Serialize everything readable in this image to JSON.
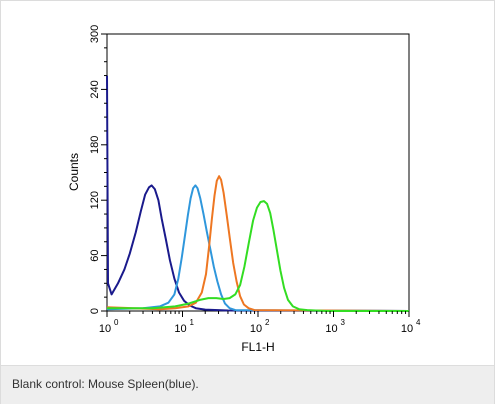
{
  "caption": "Blank control: Mouse Spleen(blue).",
  "chart_data": {
    "type": "line",
    "xlabel": "FL1-H",
    "ylabel": "Counts",
    "x_scale": "log",
    "xlim": [
      1,
      10000
    ],
    "ylim": [
      0,
      300
    ],
    "x_ticks": [
      {
        "value": 1,
        "base": "10",
        "exp": "0"
      },
      {
        "value": 10,
        "base": "10",
        "exp": "1"
      },
      {
        "value": 100,
        "base": "10",
        "exp": "2"
      },
      {
        "value": 1000,
        "base": "10",
        "exp": "3"
      },
      {
        "value": 10000,
        "base": "10",
        "exp": "4"
      }
    ],
    "y_ticks": [
      "0",
      "60",
      "120",
      "180",
      "240",
      "300"
    ],
    "grid": false,
    "series": [
      {
        "color": "#1a1a8c",
        "points": [
          [
            1.0,
            255
          ],
          [
            1.03,
            30
          ],
          [
            1.15,
            18
          ],
          [
            1.4,
            30
          ],
          [
            1.7,
            45
          ],
          [
            2.0,
            62
          ],
          [
            2.4,
            85
          ],
          [
            2.8,
            108
          ],
          [
            3.2,
            126
          ],
          [
            3.6,
            134
          ],
          [
            3.9,
            136
          ],
          [
            4.3,
            132
          ],
          [
            4.8,
            120
          ],
          [
            5.3,
            100
          ],
          [
            6.0,
            78
          ],
          [
            6.8,
            55
          ],
          [
            7.8,
            35
          ],
          [
            9.0,
            20
          ],
          [
            10.5,
            11
          ],
          [
            12.5,
            6
          ],
          [
            15,
            3
          ],
          [
            20,
            1.5
          ],
          [
            40,
            0.5
          ],
          [
            10000,
            0
          ]
        ]
      },
      {
        "color": "#2f97dc",
        "points": [
          [
            1.0,
            2
          ],
          [
            3,
            3
          ],
          [
            5,
            5
          ],
          [
            6.5,
            9
          ],
          [
            7.8,
            18
          ],
          [
            8.8,
            35
          ],
          [
            9.8,
            58
          ],
          [
            10.8,
            82
          ],
          [
            11.8,
            104
          ],
          [
            12.8,
            122
          ],
          [
            13.8,
            133
          ],
          [
            14.8,
            136
          ],
          [
            15.8,
            133
          ],
          [
            17.2,
            122
          ],
          [
            19,
            105
          ],
          [
            21,
            86
          ],
          [
            23.5,
            66
          ],
          [
            26,
            48
          ],
          [
            29,
            32
          ],
          [
            32.5,
            18
          ],
          [
            36.5,
            8
          ],
          [
            42,
            3
          ],
          [
            50,
            1
          ],
          [
            10000,
            0
          ]
        ]
      },
      {
        "color": "#ee7722",
        "points": [
          [
            1.0,
            4
          ],
          [
            5,
            2
          ],
          [
            8,
            3
          ],
          [
            12,
            5
          ],
          [
            15,
            9
          ],
          [
            18,
            20
          ],
          [
            20.5,
            40
          ],
          [
            22.5,
            70
          ],
          [
            24.5,
            100
          ],
          [
            26.5,
            125
          ],
          [
            28.5,
            141
          ],
          [
            30.5,
            146
          ],
          [
            32.5,
            142
          ],
          [
            35,
            128
          ],
          [
            38.5,
            104
          ],
          [
            42.5,
            78
          ],
          [
            47,
            52
          ],
          [
            52,
            32
          ],
          [
            58,
            16
          ],
          [
            65,
            7
          ],
          [
            75,
            3
          ],
          [
            90,
            1
          ],
          [
            10000,
            0
          ]
        ]
      },
      {
        "color": "#33dd22",
        "points": [
          [
            1.0,
            3
          ],
          [
            4,
            3
          ],
          [
            8,
            5
          ],
          [
            12,
            8
          ],
          [
            17,
            12
          ],
          [
            22,
            14
          ],
          [
            28,
            14
          ],
          [
            35,
            13
          ],
          [
            42,
            14
          ],
          [
            50,
            18
          ],
          [
            58,
            28
          ],
          [
            66,
            48
          ],
          [
            76,
            75
          ],
          [
            86,
            98
          ],
          [
            97,
            112
          ],
          [
            108,
            118
          ],
          [
            120,
            119
          ],
          [
            132,
            116
          ],
          [
            145,
            106
          ],
          [
            160,
            88
          ],
          [
            178,
            66
          ],
          [
            198,
            44
          ],
          [
            222,
            25
          ],
          [
            250,
            12
          ],
          [
            290,
            5
          ],
          [
            350,
            2
          ],
          [
            450,
            1
          ],
          [
            800,
            0
          ],
          [
            10000,
            0
          ]
        ]
      }
    ]
  }
}
